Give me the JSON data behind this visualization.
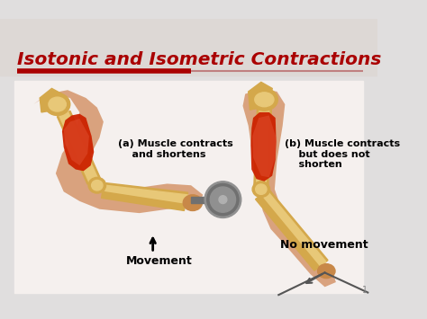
{
  "title": "Isotonic and Isometric Contractions",
  "title_color": "#aa0000",
  "title_fontsize": 14.5,
  "slide_bg": "#e0dede",
  "content_bg": "#f5f0ee",
  "red_line_color": "#aa0000",
  "red_line_thin_color": "#c08080",
  "label_a": "(a) Muscle contracts\n    and shortens",
  "label_b": "(b) Muscle contracts\n    but does not\n    shorten",
  "label_movement": "Movement",
  "label_no_movement": "No movement",
  "bone_color": "#d4a84b",
  "bone_light": "#e8c878",
  "skin_color": "#e8c090",
  "muscle_red": "#cc2200",
  "muscle_light_red": "#e05030",
  "dumbbell_dark": "#707070",
  "dumbbell_mid": "#909090",
  "dumbbell_light": "#b0b0b0",
  "page_number": "1"
}
